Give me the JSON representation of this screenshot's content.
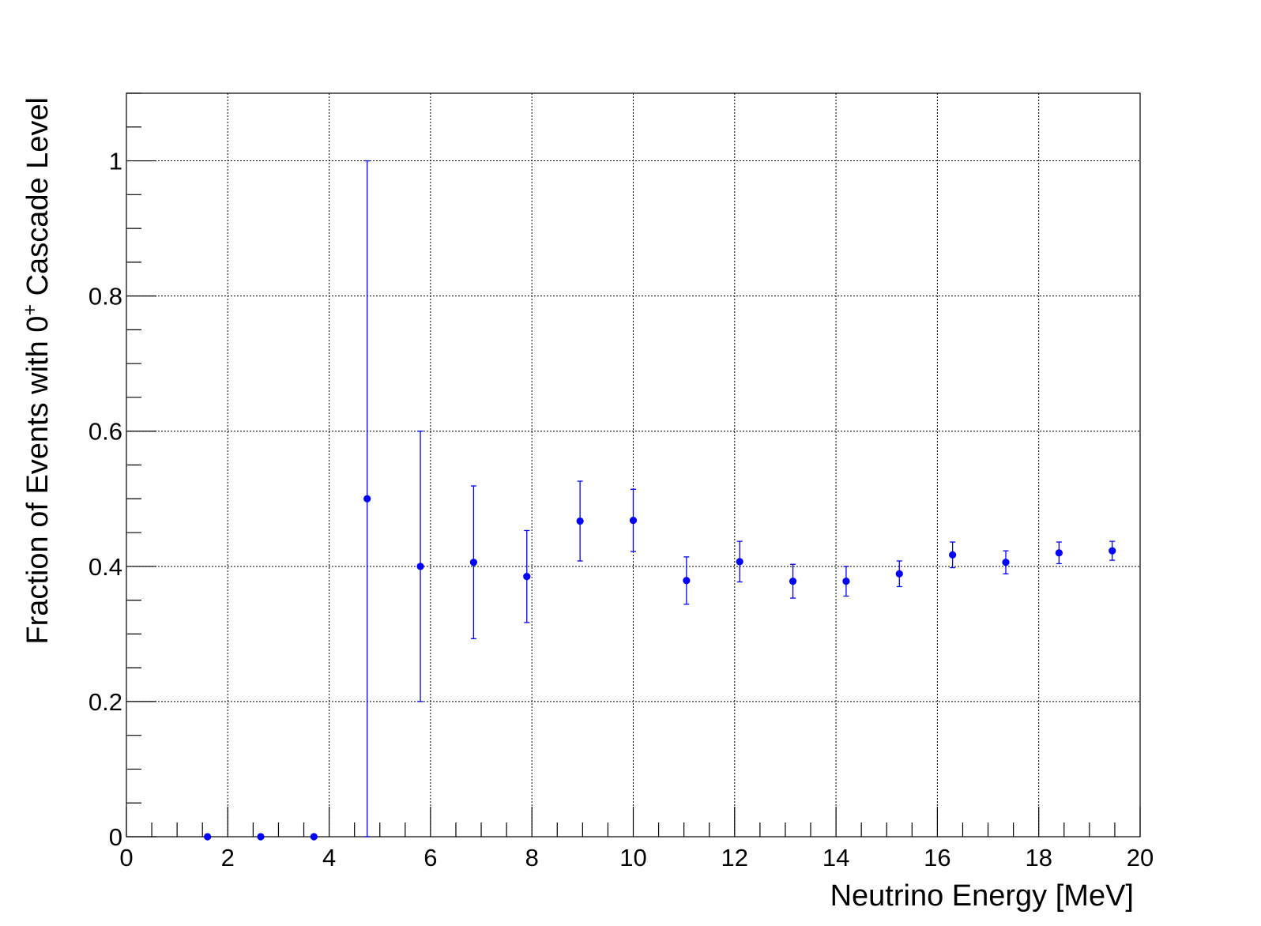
{
  "chart_data": {
    "type": "scatter",
    "xlabel": "Neutrino Energy [MeV]",
    "ylabel_parts": {
      "before": "Fraction of Events with 0",
      "superscript": "+",
      "after": " Cascade Level"
    },
    "xlim": [
      0,
      20
    ],
    "ylim": [
      0,
      1.1
    ],
    "x_ticks": [
      0,
      2,
      4,
      6,
      8,
      10,
      12,
      14,
      16,
      18,
      20
    ],
    "x_tick_labels": [
      "0",
      "2",
      "4",
      "6",
      "8",
      "10",
      "12",
      "14",
      "16",
      "18",
      "20"
    ],
    "y_ticks": [
      0,
      0.2,
      0.4,
      0.6,
      0.8,
      1.0
    ],
    "y_tick_labels": [
      "0",
      "0.2",
      "0.4",
      "0.6",
      "0.8",
      "1"
    ],
    "x_minor_step": 0.5,
    "y_minor_step": 0.05,
    "grid": true,
    "legend": "none",
    "marker_color": "#0000ff",
    "points": [
      {
        "x": 1.6,
        "y": 0.0,
        "err": 0.0
      },
      {
        "x": 2.65,
        "y": 0.0,
        "err": 0.0
      },
      {
        "x": 3.7,
        "y": 0.0,
        "err": 0.0
      },
      {
        "x": 4.75,
        "y": 0.5,
        "err": 0.5
      },
      {
        "x": 5.8,
        "y": 0.4,
        "err": 0.2
      },
      {
        "x": 6.85,
        "y": 0.406,
        "err": 0.113
      },
      {
        "x": 7.9,
        "y": 0.385,
        "err": 0.068
      },
      {
        "x": 8.95,
        "y": 0.467,
        "err": 0.059
      },
      {
        "x": 10.0,
        "y": 0.468,
        "err": 0.046
      },
      {
        "x": 11.05,
        "y": 0.379,
        "err": 0.035
      },
      {
        "x": 12.1,
        "y": 0.407,
        "err": 0.03
      },
      {
        "x": 13.15,
        "y": 0.378,
        "err": 0.025
      },
      {
        "x": 14.2,
        "y": 0.378,
        "err": 0.022
      },
      {
        "x": 15.25,
        "y": 0.389,
        "err": 0.019
      },
      {
        "x": 16.3,
        "y": 0.417,
        "err": 0.019
      },
      {
        "x": 17.35,
        "y": 0.406,
        "err": 0.017
      },
      {
        "x": 18.4,
        "y": 0.42,
        "err": 0.016
      },
      {
        "x": 19.45,
        "y": 0.423,
        "err": 0.014
      }
    ]
  }
}
